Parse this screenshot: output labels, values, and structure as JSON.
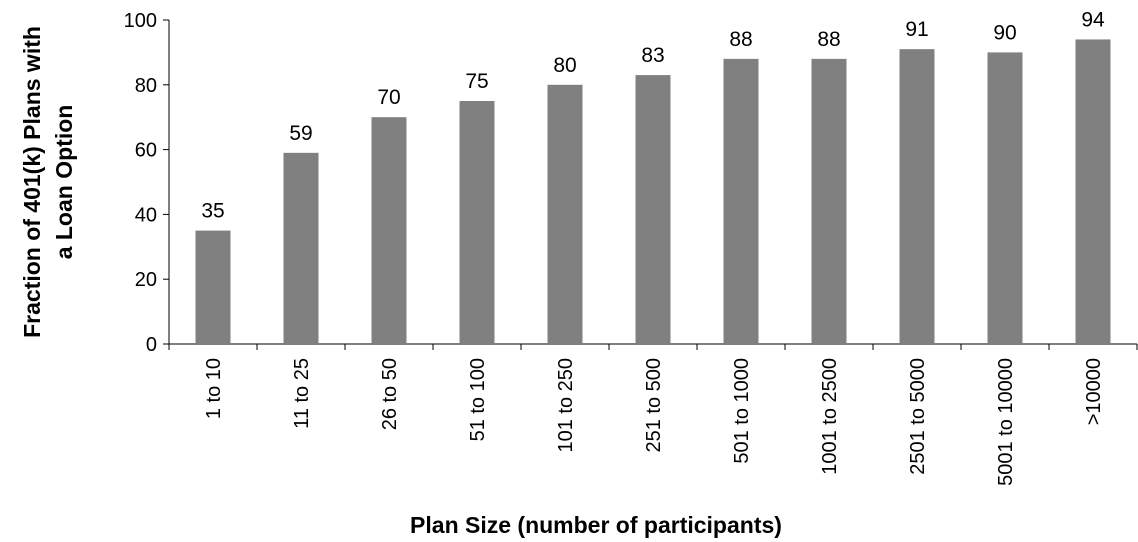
{
  "chart_data": {
    "type": "bar",
    "categories": [
      "1 to 10",
      "11 to 25",
      "26 to 50",
      "51 to 100",
      "101 to 250",
      "251 to 500",
      "501 to 1000",
      "1001 to 2500",
      "2501 to 5000",
      "5001 to 10000",
      ">10000"
    ],
    "values": [
      35,
      59,
      70,
      75,
      80,
      83,
      88,
      88,
      91,
      90,
      94
    ],
    "data_labels": [
      "35",
      "59",
      "70",
      "75",
      "80",
      "83",
      "88",
      "88",
      "91",
      "90",
      "94"
    ],
    "xlabel": "Plan Size (number of participants)",
    "ylabel_lines": [
      "Fraction of 401(k) Plans with",
      "a Loan Option"
    ],
    "ylim": [
      0,
      100
    ],
    "yticks": [
      0,
      20,
      40,
      60,
      80,
      100
    ],
    "bar_color": "#808080",
    "grid": false,
    "legend": false
  }
}
